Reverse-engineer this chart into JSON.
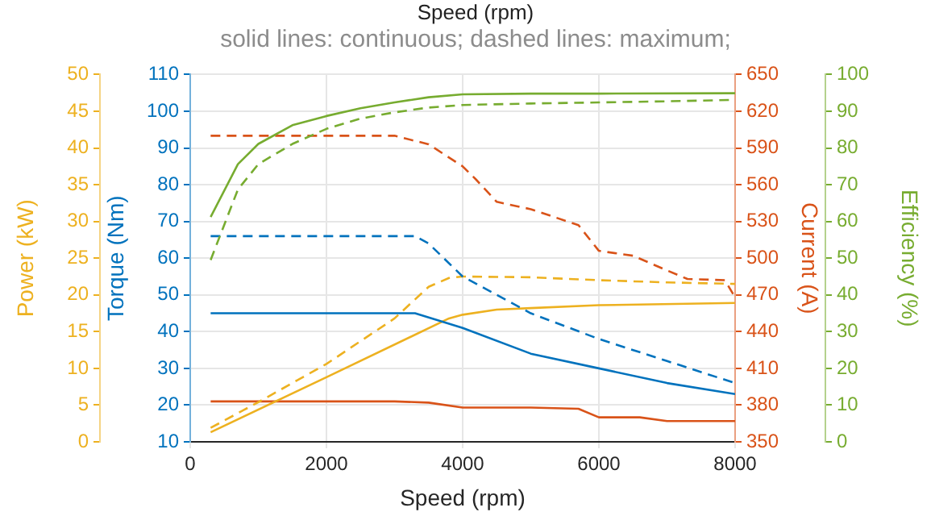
{
  "chart_data": [
    {
      "type": "line",
      "title": "solid lines: continuous; dashed lines: maximum;",
      "annotations": [
        "Speed (rpm)"
      ],
      "xlabel": "Speed (rpm)",
      "ylabel": "Torque (Nm)",
      "y2label": "Current (A)",
      "y3label": "Power (kW)",
      "xlim": [
        0,
        8000
      ],
      "xticks": [
        0,
        2000,
        4000,
        6000,
        8000
      ],
      "ylim": [
        10,
        110
      ],
      "yticks": [
        10,
        20,
        30,
        40,
        50,
        60,
        70,
        80,
        90,
        100,
        110
      ],
      "y2lim": [
        350,
        650
      ],
      "y2ticks": [
        350,
        380,
        410,
        440,
        470,
        500,
        530,
        560,
        590,
        620,
        650
      ],
      "y3lim": [
        0,
        50
      ],
      "y3ticks": [
        0,
        5,
        10,
        15,
        20,
        25,
        30,
        35,
        40,
        45,
        50
      ],
      "grid": true,
      "marker": "none",
      "series": [
        {
          "color": "#0072bd",
          "line_style": "solid",
          "x": [
            300,
            3300,
            4000,
            5000,
            6000,
            7000,
            8000
          ],
          "values": [
            45,
            45,
            41,
            34,
            30,
            26,
            23
          ]
        },
        {
          "color": "#0072bd",
          "line_style": "dashed",
          "x": [
            300,
            3300,
            3500,
            4000,
            5000,
            6000,
            7000,
            8000
          ],
          "values": [
            66,
            66,
            64,
            55,
            45,
            38,
            32,
            26
          ]
        },
        {
          "axis": "y3",
          "color": "#edb120",
          "line_style": "solid",
          "x": [
            300,
            2000,
            3800,
            4000,
            4500,
            5000,
            6000,
            8000
          ],
          "values": [
            1.3,
            8.8,
            16.8,
            17.3,
            18,
            18.2,
            18.6,
            18.9
          ]
        },
        {
          "axis": "y3",
          "color": "#edb120",
          "line_style": "dashed",
          "x": [
            300,
            1000,
            2000,
            3000,
            3500,
            3800,
            4000,
            5000,
            6000,
            7000,
            8000
          ],
          "values": [
            1.9,
            5.4,
            10.6,
            16.8,
            21.1,
            22.3,
            22.5,
            22.4,
            22,
            21.7,
            21.5
          ]
        },
        {
          "axis": "y2",
          "color": "#d95319",
          "line_style": "solid",
          "x": [
            300,
            3000,
            3500,
            4000,
            5000,
            5700,
            6000,
            6600,
            7000,
            8000
          ],
          "values": [
            383,
            383,
            382,
            378,
            378,
            377,
            370,
            370,
            367,
            367
          ]
        },
        {
          "axis": "y2",
          "color": "#d95319",
          "line_style": "dashed",
          "x": [
            300,
            3000,
            3500,
            4000,
            4200,
            4500,
            5000,
            5700,
            6000,
            6500,
            7000,
            7300,
            7850,
            8000
          ],
          "values": [
            600,
            600,
            593,
            575,
            564,
            546,
            540,
            527,
            506,
            502,
            490,
            483,
            482,
            468
          ]
        }
      ]
    },
    {
      "type": "line",
      "ylabel": "Efficiency (%)",
      "xlim": [
        0,
        8000
      ],
      "ylim": [
        0,
        100
      ],
      "yticks": [
        0,
        10,
        20,
        30,
        40,
        50,
        60,
        70,
        80,
        90,
        100
      ],
      "tick_labels": "y",
      "series": [
        {
          "color": "#77ac30",
          "line_style": "solid",
          "x": [
            300,
            700,
            1000,
            1500,
            2000,
            2500,
            3000,
            3500,
            4000,
            5000,
            6000,
            8000
          ],
          "values": [
            61.2,
            75.6,
            81.1,
            86.2,
            88.7,
            90.8,
            92.4,
            93.8,
            94.6,
            94.8,
            94.8,
            94.9
          ]
        },
        {
          "color": "#77ac30",
          "line_style": "dashed",
          "x": [
            300,
            700,
            1000,
            1500,
            2000,
            2500,
            3000,
            3500,
            4000,
            5000,
            6000,
            7000,
            8000
          ],
          "values": [
            49.5,
            68.7,
            75.6,
            81.1,
            85.2,
            88,
            89.7,
            91,
            91.7,
            92.1,
            92.4,
            92.7,
            93.1
          ]
        }
      ]
    }
  ]
}
